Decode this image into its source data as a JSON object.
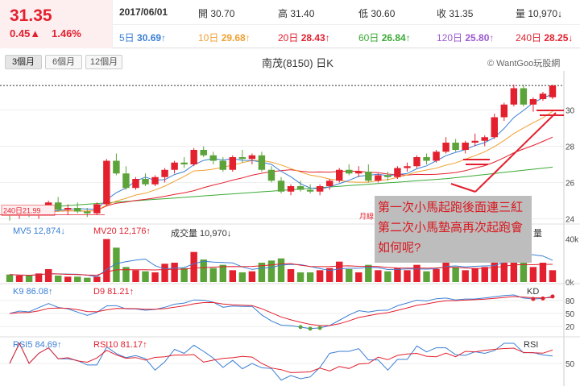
{
  "quote": {
    "price": "31.35",
    "change": "0.45▲",
    "change_pct": "1.46%",
    "date": "2017/06/01",
    "open_label": "開",
    "open": "30.70",
    "high_label": "高",
    "high": "31.40",
    "low_label": "低",
    "low": "30.60",
    "close_label": "收",
    "close": "31.35",
    "volume_label": "量",
    "volume": "10,970↓"
  },
  "moving_averages": [
    {
      "label": "5日",
      "value": "30.69↑",
      "color": "#3a7fd5"
    },
    {
      "label": "10日",
      "value": "29.68↑",
      "color": "#f0a030"
    },
    {
      "label": "20日",
      "value": "28.43↑",
      "color": "#e3202e"
    },
    {
      "label": "60日",
      "value": "26.84↑",
      "color": "#3aaa35"
    },
    {
      "label": "120日",
      "value": "25.80↑",
      "color": "#9b59d0"
    },
    {
      "label": "240日",
      "value": "28.25↓",
      "color": "#e3202e"
    }
  ],
  "tabs": [
    "3個月",
    "6個月",
    "12個月"
  ],
  "chart": {
    "title": "南茂(8150) 日K",
    "credit": "© WantGoo玩股網",
    "price_ticks": [
      "30",
      "28",
      "26",
      "24"
    ],
    "left_label": "240日21.99",
    "mid_label": "月線",
    "volume_ticks": [
      "40k",
      "0k"
    ],
    "kd_ticks": [
      "80",
      "50",
      "20"
    ],
    "rsi_ticks": [
      "50"
    ],
    "colors": {
      "up": "#e3202e",
      "down": "#5ca33a"
    }
  },
  "volume_panel": {
    "mv5": "MV5 12,874↓",
    "mv20": "MV20 12,176↑",
    "vol": "成交量 10,970↓",
    "tag": "量"
  },
  "kd_panel": {
    "k": "K9 86.08↑",
    "d": "D9 81.21↑",
    "tag": "KD"
  },
  "rsi_panel": {
    "rsi5": "RSI5 84.69↑",
    "rsi10": "RSI10 81.17↑",
    "tag": "RSI"
  },
  "annotation": {
    "line1": "第一次小馬起跑後面連三紅",
    "line2": "第二次小馬墊高再次起跑會",
    "line3": "如何呢?"
  },
  "chart_data": {
    "type": "candlestick",
    "candles": [
      [
        24.3,
        24.5,
        23.9,
        24.2
      ],
      [
        24.2,
        24.4,
        24.0,
        24.3
      ],
      [
        24.3,
        24.5,
        24.1,
        24.2
      ],
      [
        24.2,
        24.5,
        24.0,
        24.4
      ],
      [
        24.4,
        25.0,
        24.3,
        24.9
      ],
      [
        24.9,
        25.2,
        24.4,
        24.5
      ],
      [
        24.5,
        24.8,
        24.2,
        24.6
      ],
      [
        24.6,
        24.9,
        24.3,
        24.4
      ],
      [
        24.4,
        24.6,
        24.1,
        24.3
      ],
      [
        24.3,
        24.9,
        24.2,
        24.8
      ],
      [
        24.8,
        27.3,
        24.7,
        27.2
      ],
      [
        27.2,
        27.6,
        26.4,
        26.5
      ],
      [
        26.5,
        26.9,
        25.6,
        25.7
      ],
      [
        25.7,
        26.3,
        25.6,
        26.2
      ],
      [
        26.2,
        26.5,
        25.8,
        25.9
      ],
      [
        25.9,
        26.4,
        25.8,
        26.3
      ],
      [
        26.3,
        26.8,
        26.0,
        26.7
      ],
      [
        26.7,
        27.2,
        26.5,
        27.1
      ],
      [
        27.1,
        27.4,
        26.8,
        27.0
      ],
      [
        27.0,
        27.9,
        26.9,
        27.8
      ],
      [
        27.8,
        28.0,
        27.4,
        27.5
      ],
      [
        27.5,
        27.7,
        27.0,
        27.2
      ],
      [
        27.2,
        27.4,
        26.6,
        26.7
      ],
      [
        26.7,
        27.5,
        26.6,
        27.4
      ],
      [
        27.4,
        27.8,
        27.1,
        27.3
      ],
      [
        27.3,
        27.6,
        27.0,
        27.5
      ],
      [
        27.5,
        27.7,
        26.6,
        26.7
      ],
      [
        26.7,
        26.9,
        26.0,
        26.1
      ],
      [
        26.1,
        26.3,
        25.4,
        25.5
      ],
      [
        25.5,
        25.9,
        25.3,
        25.8
      ],
      [
        25.8,
        26.1,
        25.5,
        25.6
      ],
      [
        25.6,
        25.9,
        25.4,
        25.5
      ],
      [
        25.5,
        25.9,
        25.3,
        25.8
      ],
      [
        25.8,
        26.2,
        25.6,
        26.1
      ],
      [
        26.1,
        26.8,
        26.0,
        26.7
      ],
      [
        26.7,
        27.0,
        26.4,
        26.5
      ],
      [
        26.5,
        26.9,
        26.3,
        26.6
      ],
      [
        26.6,
        27.0,
        26.0,
        26.1
      ],
      [
        26.1,
        26.5,
        26.0,
        26.4
      ],
      [
        26.4,
        26.6,
        26.1,
        26.3
      ],
      [
        26.3,
        26.9,
        26.2,
        26.8
      ],
      [
        26.8,
        27.1,
        26.6,
        26.9
      ],
      [
        26.9,
        27.5,
        26.8,
        27.4
      ],
      [
        27.4,
        27.6,
        27.0,
        27.2
      ],
      [
        27.2,
        27.8,
        27.1,
        27.7
      ],
      [
        27.7,
        28.5,
        27.6,
        28.2
      ],
      [
        28.2,
        28.4,
        27.7,
        27.8
      ],
      [
        27.8,
        28.3,
        27.6,
        28.2
      ],
      [
        28.2,
        28.7,
        28.0,
        28.3
      ],
      [
        28.3,
        28.6,
        28.0,
        28.5
      ],
      [
        28.5,
        29.8,
        28.4,
        29.6
      ],
      [
        29.6,
        30.4,
        29.4,
        30.3
      ],
      [
        30.3,
        31.4,
        30.2,
        31.2
      ],
      [
        31.2,
        31.4,
        30.2,
        30.3
      ],
      [
        30.3,
        30.7,
        29.9,
        30.6
      ],
      [
        30.6,
        31.0,
        30.5,
        30.9
      ],
      [
        30.7,
        31.4,
        30.6,
        31.35
      ]
    ],
    "ylim": [
      23.8,
      31.8
    ],
    "volume": [
      7,
      6,
      6,
      8,
      12,
      6,
      5,
      5,
      4,
      5,
      40,
      32,
      14,
      11,
      10,
      9,
      17,
      18,
      13,
      28,
      21,
      13,
      16,
      11,
      9,
      10,
      18,
      20,
      22,
      12,
      9,
      9,
      11,
      13,
      19,
      12,
      9,
      16,
      11,
      10,
      13,
      11,
      16,
      10,
      12,
      23,
      14,
      11,
      13,
      14,
      24,
      31,
      36,
      22,
      14,
      18,
      11
    ]
  }
}
